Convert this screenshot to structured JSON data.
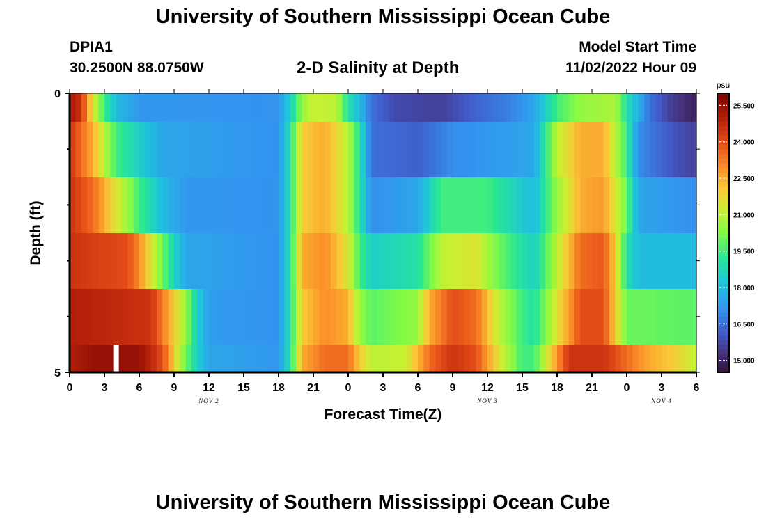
{
  "header": {
    "title": "University of Southern Mississippi Ocean Cube",
    "station": "DPIA1",
    "coordinates": "30.2500N  88.0750W",
    "subtitle": "2-D Salinity at Depth",
    "model_start_label": "Model Start Time",
    "model_start_value": "11/02/2022 Hour 09"
  },
  "footer": {
    "title": "University of Southern Mississippi Ocean Cube"
  },
  "chart_data": {
    "type": "heatmap",
    "title": "2-D Salinity at Depth",
    "xlabel": "Forecast Time(Z)",
    "ylabel": "Depth (ft)",
    "ylim": [
      0,
      5
    ],
    "y_ticks": [
      "0",
      "5"
    ],
    "x_ticks": [
      "0",
      "3",
      "6",
      "9",
      "12",
      "15",
      "18",
      "21",
      "0",
      "3",
      "6",
      "9",
      "12",
      "15",
      "18",
      "21",
      "0",
      "3",
      "6"
    ],
    "x_range_hours": [
      0,
      54
    ],
    "date_labels": [
      {
        "label": "NOV 2",
        "hour": 12
      },
      {
        "label": "NOV 3",
        "hour": 36
      },
      {
        "label": "NOV 4",
        "hour": 51
      }
    ],
    "colorbar": {
      "unit": "psu",
      "range": [
        14.5,
        26.0
      ],
      "ticks": [
        "25.500",
        "24.000",
        "22.500",
        "21.000",
        "19.500",
        "18.000",
        "16.500",
        "15.000"
      ]
    },
    "depth_layers": [
      {
        "depth_ft": "0-0.5",
        "knots": [
          [
            0,
            25.2
          ],
          [
            1,
            24.5
          ],
          [
            2,
            21.5
          ],
          [
            3,
            19.5
          ],
          [
            4,
            18
          ],
          [
            6,
            17.2
          ],
          [
            18,
            17.1
          ],
          [
            19,
            18.5
          ],
          [
            20,
            20.5
          ],
          [
            21,
            21.2
          ],
          [
            23,
            21
          ],
          [
            24,
            19
          ],
          [
            25,
            18
          ],
          [
            26,
            16.5
          ],
          [
            28,
            15.8
          ],
          [
            32,
            15.6
          ],
          [
            35,
            16.3
          ],
          [
            38,
            16.8
          ],
          [
            40,
            17.5
          ],
          [
            42,
            19.5
          ],
          [
            44,
            20.5
          ],
          [
            47,
            20.8
          ],
          [
            48,
            19
          ],
          [
            50,
            16.5
          ],
          [
            52,
            15.5
          ],
          [
            54,
            14.9
          ]
        ]
      },
      {
        "depth_ft": "0.5-1.5",
        "knots": [
          [
            0,
            24.5
          ],
          [
            2,
            22.5
          ],
          [
            4,
            19.5
          ],
          [
            6,
            18.5
          ],
          [
            8,
            17.5
          ],
          [
            18,
            17.1
          ],
          [
            19,
            19
          ],
          [
            20,
            22
          ],
          [
            22,
            22.5
          ],
          [
            24,
            21
          ],
          [
            25,
            19
          ],
          [
            26,
            16.5
          ],
          [
            30,
            16.2
          ],
          [
            33,
            17
          ],
          [
            36,
            17.2
          ],
          [
            40,
            17.5
          ],
          [
            42,
            21
          ],
          [
            44,
            22.5
          ],
          [
            46,
            22.5
          ],
          [
            48,
            19.5
          ],
          [
            49,
            17
          ],
          [
            52,
            16
          ],
          [
            54,
            15.6
          ]
        ]
      },
      {
        "depth_ft": "1.5-2.5",
        "knots": [
          [
            0,
            24.5
          ],
          [
            2,
            23.5
          ],
          [
            4,
            21.5
          ],
          [
            6,
            19.5
          ],
          [
            8,
            18
          ],
          [
            10,
            17.2
          ],
          [
            18,
            17.1
          ],
          [
            19,
            19
          ],
          [
            20,
            22
          ],
          [
            22,
            22.5
          ],
          [
            24,
            21
          ],
          [
            25,
            19
          ],
          [
            26,
            17
          ],
          [
            30,
            17.5
          ],
          [
            32,
            19.5
          ],
          [
            36,
            19.5
          ],
          [
            40,
            18
          ],
          [
            42,
            20.5
          ],
          [
            44,
            22.5
          ],
          [
            46,
            22.8
          ],
          [
            48,
            20
          ],
          [
            49,
            17.5
          ],
          [
            54,
            17
          ]
        ]
      },
      {
        "depth_ft": "2.5-3.5",
        "knots": [
          [
            0,
            24.5
          ],
          [
            5,
            24
          ],
          [
            6,
            23
          ],
          [
            8,
            20
          ],
          [
            10,
            17.5
          ],
          [
            18,
            17.1
          ],
          [
            19,
            19
          ],
          [
            20,
            22.5
          ],
          [
            22,
            23
          ],
          [
            24,
            21.5
          ],
          [
            25,
            19.5
          ],
          [
            26,
            18.5
          ],
          [
            30,
            19
          ],
          [
            32,
            21
          ],
          [
            35,
            21.5
          ],
          [
            37,
            20
          ],
          [
            40,
            18.5
          ],
          [
            44,
            23.5
          ],
          [
            46,
            23.8
          ],
          [
            47,
            22
          ],
          [
            48,
            19
          ],
          [
            49,
            18
          ],
          [
            54,
            18
          ]
        ]
      },
      {
        "depth_ft": "3.5-4.5",
        "knots": [
          [
            0,
            25
          ],
          [
            7,
            24.5
          ],
          [
            9,
            22
          ],
          [
            10,
            20.5
          ],
          [
            11,
            18.5
          ],
          [
            12,
            17.3
          ],
          [
            18,
            17.1
          ],
          [
            19,
            19
          ],
          [
            20,
            22
          ],
          [
            22,
            23
          ],
          [
            24,
            22.5
          ],
          [
            25,
            20.5
          ],
          [
            26,
            19.8
          ],
          [
            30,
            20.5
          ],
          [
            31,
            22.5
          ],
          [
            33,
            24
          ],
          [
            35,
            23.5
          ],
          [
            37,
            21
          ],
          [
            39,
            19.5
          ],
          [
            40,
            19
          ],
          [
            44,
            24
          ],
          [
            46,
            24
          ],
          [
            47,
            22
          ],
          [
            48,
            20
          ],
          [
            54,
            19.8
          ]
        ]
      },
      {
        "depth_ft": "4.5-5",
        "knots": [
          [
            0,
            25
          ],
          [
            2,
            25.5
          ],
          [
            6,
            25.5
          ],
          [
            8,
            24
          ],
          [
            9,
            22
          ],
          [
            10,
            20
          ],
          [
            11,
            18.5
          ],
          [
            12,
            17.5
          ],
          [
            18,
            17.2
          ],
          [
            19,
            19
          ],
          [
            20,
            22.5
          ],
          [
            22,
            23.5
          ],
          [
            24,
            23.5
          ],
          [
            25,
            22
          ],
          [
            26,
            21
          ],
          [
            29,
            21.2
          ],
          [
            31,
            23.5
          ],
          [
            33,
            24.5
          ],
          [
            35,
            24
          ],
          [
            37,
            21.5
          ],
          [
            38,
            20.5
          ],
          [
            39,
            19.5
          ],
          [
            40,
            19.5
          ],
          [
            43,
            24.5
          ],
          [
            46,
            24.5
          ],
          [
            48,
            23.5
          ],
          [
            50,
            22.5
          ],
          [
            52,
            22
          ],
          [
            54,
            21
          ]
        ]
      }
    ],
    "marker": {
      "hour": 4,
      "layer": 5,
      "color": "#ffffff"
    }
  }
}
